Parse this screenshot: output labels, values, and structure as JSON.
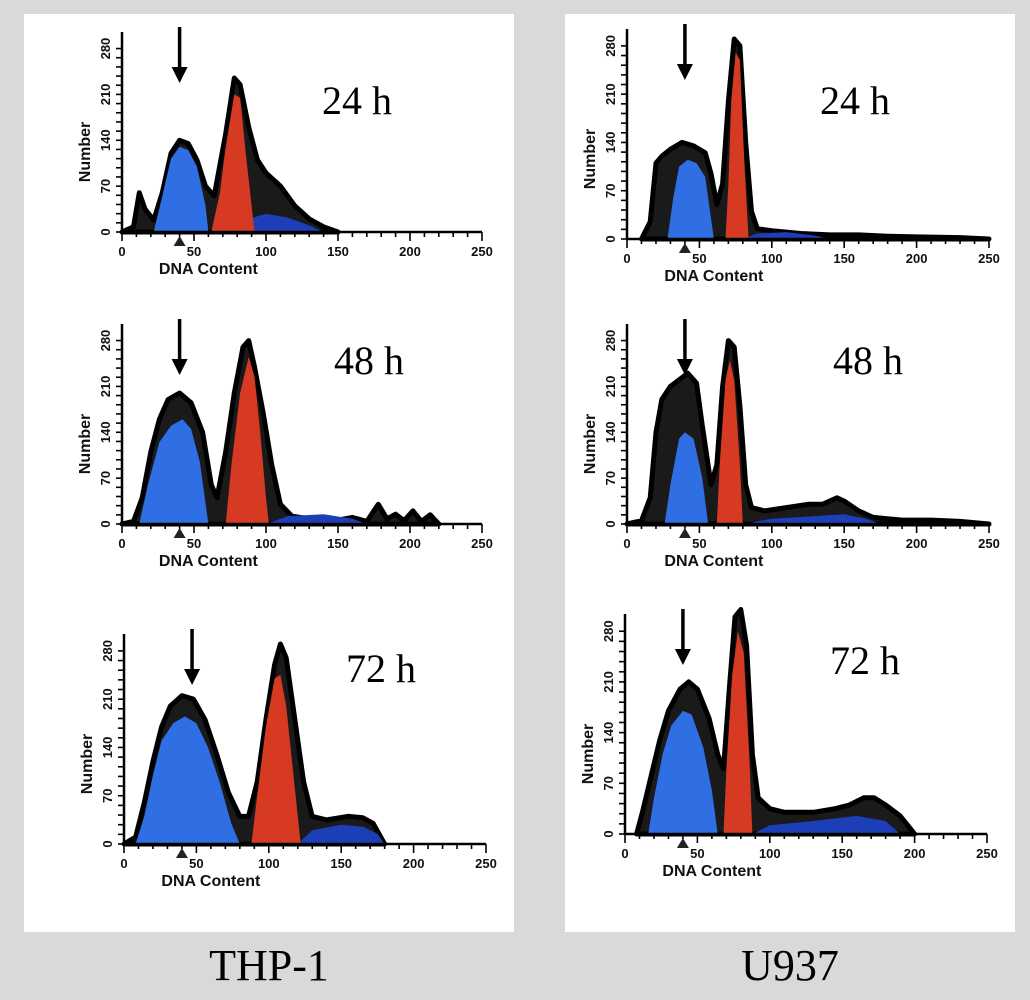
{
  "columns": [
    {
      "name": "THP-1",
      "label": "THP-1"
    },
    {
      "name": "U937",
      "label": "U937"
    }
  ],
  "colors": {
    "g1": "#2f6fe3",
    "g2m": "#d63a22",
    "sphase": "#1c3fb8",
    "envelope": "#1a1a1a"
  },
  "chart_data": [
    {
      "type": "area",
      "cell_line": "THP-1",
      "time_label": "24 h",
      "xlabel": "DNA Content",
      "ylabel": "Number",
      "xlim": [
        0,
        250
      ],
      "ylim": [
        0,
        290
      ],
      "xticks": [
        0,
        50,
        100,
        150,
        200,
        250
      ],
      "yticks": [
        0,
        70,
        140,
        210,
        280
      ],
      "arrow_x": 40,
      "envelope": [
        [
          0,
          0
        ],
        [
          8,
          8
        ],
        [
          12,
          60
        ],
        [
          16,
          35
        ],
        [
          22,
          18
        ],
        [
          28,
          60
        ],
        [
          34,
          120
        ],
        [
          40,
          140
        ],
        [
          46,
          135
        ],
        [
          52,
          110
        ],
        [
          58,
          70
        ],
        [
          64,
          55
        ],
        [
          72,
          150
        ],
        [
          78,
          235
        ],
        [
          82,
          225
        ],
        [
          88,
          160
        ],
        [
          94,
          110
        ],
        [
          100,
          90
        ],
        [
          110,
          70
        ],
        [
          120,
          40
        ],
        [
          130,
          20
        ],
        [
          140,
          8
        ],
        [
          150,
          0
        ]
      ],
      "g1": [
        [
          22,
          0
        ],
        [
          28,
          55
        ],
        [
          34,
          112
        ],
        [
          40,
          130
        ],
        [
          46,
          125
        ],
        [
          52,
          100
        ],
        [
          58,
          40
        ],
        [
          60,
          0
        ]
      ],
      "g2m": [
        [
          62,
          0
        ],
        [
          68,
          60
        ],
        [
          72,
          130
        ],
        [
          78,
          210
        ],
        [
          82,
          205
        ],
        [
          86,
          120
        ],
        [
          90,
          40
        ],
        [
          92,
          0
        ]
      ],
      "sphase": [
        [
          68,
          0
        ],
        [
          80,
          15
        ],
        [
          100,
          28
        ],
        [
          115,
          22
        ],
        [
          130,
          10
        ],
        [
          140,
          0
        ]
      ]
    },
    {
      "type": "area",
      "cell_line": "U937",
      "time_label": "24 h",
      "xlabel": "DNA Content",
      "ylabel": "Number",
      "xlim": [
        0,
        250
      ],
      "ylim": [
        0,
        290
      ],
      "xticks": [
        0,
        50,
        100,
        150,
        200,
        250
      ],
      "yticks": [
        0,
        70,
        140,
        210,
        280
      ],
      "arrow_x": 40,
      "envelope": [
        [
          10,
          0
        ],
        [
          16,
          25
        ],
        [
          20,
          110
        ],
        [
          24,
          120
        ],
        [
          30,
          130
        ],
        [
          38,
          140
        ],
        [
          46,
          135
        ],
        [
          54,
          125
        ],
        [
          58,
          95
        ],
        [
          62,
          50
        ],
        [
          66,
          80
        ],
        [
          70,
          200
        ],
        [
          74,
          290
        ],
        [
          78,
          280
        ],
        [
          82,
          140
        ],
        [
          86,
          40
        ],
        [
          90,
          15
        ],
        [
          100,
          12
        ],
        [
          120,
          8
        ],
        [
          140,
          6
        ],
        [
          160,
          6
        ],
        [
          180,
          4
        ],
        [
          200,
          3
        ],
        [
          230,
          2
        ],
        [
          250,
          0
        ]
      ],
      "g1": [
        [
          28,
          0
        ],
        [
          32,
          60
        ],
        [
          36,
          105
        ],
        [
          42,
          115
        ],
        [
          48,
          110
        ],
        [
          54,
          90
        ],
        [
          60,
          0
        ]
      ],
      "g2m": [
        [
          68,
          0
        ],
        [
          70,
          80
        ],
        [
          72,
          200
        ],
        [
          75,
          270
        ],
        [
          78,
          260
        ],
        [
          81,
          110
        ],
        [
          84,
          0
        ]
      ],
      "sphase": [
        [
          80,
          0
        ],
        [
          90,
          8
        ],
        [
          110,
          10
        ],
        [
          130,
          5
        ],
        [
          140,
          0
        ]
      ]
    },
    {
      "type": "area",
      "cell_line": "THP-1",
      "time_label": "48 h",
      "xlabel": "DNA Content",
      "ylabel": "Number",
      "xlim": [
        0,
        250
      ],
      "ylim": [
        0,
        290
      ],
      "xticks": [
        0,
        50,
        100,
        150,
        200,
        250
      ],
      "yticks": [
        0,
        70,
        140,
        210,
        280
      ],
      "arrow_x": 40,
      "envelope": [
        [
          0,
          0
        ],
        [
          8,
          4
        ],
        [
          14,
          40
        ],
        [
          20,
          110
        ],
        [
          26,
          160
        ],
        [
          32,
          190
        ],
        [
          40,
          200
        ],
        [
          48,
          185
        ],
        [
          56,
          140
        ],
        [
          62,
          60
        ],
        [
          66,
          40
        ],
        [
          72,
          110
        ],
        [
          78,
          200
        ],
        [
          84,
          270
        ],
        [
          88,
          280
        ],
        [
          92,
          240
        ],
        [
          98,
          170
        ],
        [
          104,
          90
        ],
        [
          110,
          30
        ],
        [
          118,
          12
        ],
        [
          130,
          8
        ],
        [
          150,
          6
        ],
        [
          160,
          10
        ],
        [
          170,
          4
        ],
        [
          178,
          30
        ],
        [
          184,
          8
        ],
        [
          190,
          15
        ],
        [
          196,
          5
        ],
        [
          202,
          20
        ],
        [
          208,
          4
        ],
        [
          214,
          14
        ],
        [
          220,
          0
        ]
      ],
      "g1": [
        [
          12,
          0
        ],
        [
          18,
          60
        ],
        [
          26,
          125
        ],
        [
          34,
          150
        ],
        [
          42,
          160
        ],
        [
          48,
          145
        ],
        [
          54,
          95
        ],
        [
          60,
          0
        ]
      ],
      "g2m": [
        [
          72,
          0
        ],
        [
          76,
          90
        ],
        [
          82,
          200
        ],
        [
          88,
          255
        ],
        [
          92,
          225
        ],
        [
          96,
          140
        ],
        [
          100,
          40
        ],
        [
          102,
          0
        ]
      ],
      "sphase": [
        [
          100,
          0
        ],
        [
          115,
          12
        ],
        [
          140,
          15
        ],
        [
          160,
          8
        ],
        [
          170,
          0
        ]
      ]
    },
    {
      "type": "area",
      "cell_line": "U937",
      "time_label": "48 h",
      "xlabel": "DNA Content",
      "ylabel": "Number",
      "xlim": [
        0,
        250
      ],
      "ylim": [
        0,
        290
      ],
      "xticks": [
        0,
        50,
        100,
        150,
        200,
        250
      ],
      "yticks": [
        0,
        70,
        140,
        210,
        280
      ],
      "arrow_x": 40,
      "envelope": [
        [
          0,
          0
        ],
        [
          10,
          5
        ],
        [
          16,
          40
        ],
        [
          20,
          140
        ],
        [
          24,
          190
        ],
        [
          30,
          210
        ],
        [
          36,
          220
        ],
        [
          42,
          230
        ],
        [
          48,
          215
        ],
        [
          52,
          150
        ],
        [
          58,
          60
        ],
        [
          62,
          90
        ],
        [
          66,
          210
        ],
        [
          70,
          280
        ],
        [
          74,
          270
        ],
        [
          78,
          180
        ],
        [
          82,
          60
        ],
        [
          86,
          25
        ],
        [
          95,
          20
        ],
        [
          110,
          25
        ],
        [
          125,
          30
        ],
        [
          135,
          30
        ],
        [
          145,
          40
        ],
        [
          150,
          35
        ],
        [
          160,
          20
        ],
        [
          170,
          10
        ],
        [
          190,
          6
        ],
        [
          210,
          6
        ],
        [
          230,
          4
        ],
        [
          250,
          0
        ]
      ],
      "g1": [
        [
          26,
          0
        ],
        [
          30,
          60
        ],
        [
          36,
          130
        ],
        [
          40,
          140
        ],
        [
          46,
          130
        ],
        [
          52,
          70
        ],
        [
          56,
          0
        ]
      ],
      "g2m": [
        [
          62,
          0
        ],
        [
          64,
          90
        ],
        [
          68,
          220
        ],
        [
          71,
          250
        ],
        [
          74,
          220
        ],
        [
          78,
          90
        ],
        [
          80,
          0
        ]
      ],
      "sphase": [
        [
          80,
          0
        ],
        [
          100,
          8
        ],
        [
          130,
          12
        ],
        [
          150,
          15
        ],
        [
          165,
          8
        ],
        [
          175,
          0
        ]
      ]
    },
    {
      "type": "area",
      "cell_line": "THP-1",
      "time_label": "72 h",
      "xlabel": "DNA Content",
      "ylabel": "Number",
      "xlim": [
        0,
        250
      ],
      "ylim": [
        0,
        290
      ],
      "xticks": [
        0,
        50,
        100,
        150,
        200,
        250
      ],
      "yticks": [
        0,
        70,
        140,
        210,
        280
      ],
      "arrow_x": 47,
      "envelope": [
        [
          0,
          0
        ],
        [
          8,
          10
        ],
        [
          14,
          60
        ],
        [
          20,
          120
        ],
        [
          26,
          170
        ],
        [
          32,
          200
        ],
        [
          40,
          215
        ],
        [
          48,
          210
        ],
        [
          56,
          180
        ],
        [
          64,
          130
        ],
        [
          72,
          75
        ],
        [
          80,
          40
        ],
        [
          86,
          40
        ],
        [
          92,
          90
        ],
        [
          98,
          180
        ],
        [
          104,
          260
        ],
        [
          108,
          290
        ],
        [
          112,
          270
        ],
        [
          118,
          180
        ],
        [
          124,
          90
        ],
        [
          130,
          40
        ],
        [
          140,
          35
        ],
        [
          155,
          40
        ],
        [
          165,
          38
        ],
        [
          172,
          30
        ],
        [
          180,
          0
        ]
      ],
      "g1": [
        [
          8,
          0
        ],
        [
          14,
          40
        ],
        [
          20,
          100
        ],
        [
          26,
          150
        ],
        [
          34,
          175
        ],
        [
          42,
          185
        ],
        [
          50,
          175
        ],
        [
          58,
          140
        ],
        [
          66,
          90
        ],
        [
          74,
          30
        ],
        [
          80,
          0
        ]
      ],
      "g2m": [
        [
          88,
          0
        ],
        [
          92,
          70
        ],
        [
          98,
          170
        ],
        [
          104,
          240
        ],
        [
          108,
          245
        ],
        [
          112,
          200
        ],
        [
          118,
          80
        ],
        [
          122,
          0
        ]
      ],
      "sphase": [
        [
          120,
          0
        ],
        [
          130,
          20
        ],
        [
          150,
          28
        ],
        [
          165,
          25
        ],
        [
          175,
          15
        ],
        [
          180,
          0
        ]
      ]
    },
    {
      "type": "area",
      "cell_line": "U937",
      "time_label": "72 h",
      "xlabel": "DNA Content",
      "ylabel": "Number",
      "xlim": [
        0,
        250
      ],
      "ylim": [
        0,
        290
      ],
      "xticks": [
        0,
        50,
        100,
        150,
        200,
        250
      ],
      "yticks": [
        0,
        70,
        140,
        210,
        280
      ],
      "arrow_x": 40,
      "envelope": [
        [
          8,
          0
        ],
        [
          12,
          30
        ],
        [
          18,
          80
        ],
        [
          24,
          130
        ],
        [
          30,
          170
        ],
        [
          38,
          200
        ],
        [
          44,
          210
        ],
        [
          50,
          200
        ],
        [
          58,
          160
        ],
        [
          64,
          110
        ],
        [
          68,
          90
        ],
        [
          72,
          200
        ],
        [
          76,
          300
        ],
        [
          80,
          310
        ],
        [
          84,
          260
        ],
        [
          88,
          110
        ],
        [
          92,
          50
        ],
        [
          100,
          35
        ],
        [
          110,
          30
        ],
        [
          130,
          30
        ],
        [
          145,
          35
        ],
        [
          155,
          40
        ],
        [
          165,
          50
        ],
        [
          172,
          50
        ],
        [
          180,
          40
        ],
        [
          190,
          25
        ],
        [
          200,
          0
        ]
      ],
      "g1": [
        [
          16,
          0
        ],
        [
          20,
          50
        ],
        [
          26,
          110
        ],
        [
          32,
          150
        ],
        [
          40,
          170
        ],
        [
          46,
          165
        ],
        [
          54,
          120
        ],
        [
          60,
          60
        ],
        [
          64,
          0
        ]
      ],
      "g2m": [
        [
          68,
          0
        ],
        [
          70,
          90
        ],
        [
          74,
          220
        ],
        [
          78,
          280
        ],
        [
          82,
          250
        ],
        [
          86,
          100
        ],
        [
          88,
          0
        ]
      ],
      "sphase": [
        [
          88,
          0
        ],
        [
          100,
          12
        ],
        [
          130,
          18
        ],
        [
          160,
          25
        ],
        [
          180,
          18
        ],
        [
          190,
          0
        ]
      ]
    }
  ]
}
